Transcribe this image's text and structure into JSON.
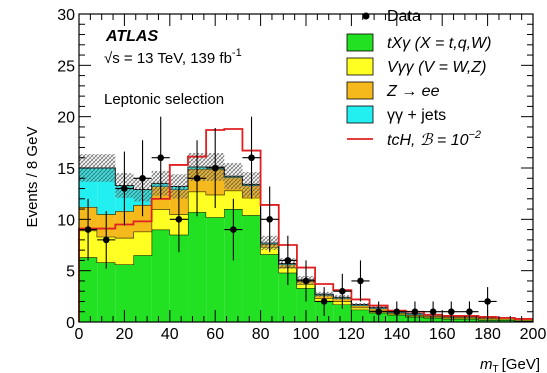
{
  "chart_data": {
    "type": "bar",
    "stacked": true,
    "x": {
      "label_main": "m",
      "label_sub": "T",
      "label_unit": "[GeV]",
      "range": [
        0,
        200
      ],
      "ticks": [
        "0",
        "20",
        "40",
        "60",
        "80",
        "100",
        "120",
        "140",
        "160",
        "180",
        "200"
      ],
      "bin_width": 8
    },
    "y": {
      "label": "Events / 8 GeV",
      "range": [
        0,
        30
      ],
      "ticks": [
        "0",
        "5",
        "10",
        "15",
        "20",
        "25",
        "30"
      ]
    },
    "bin_edges": [
      0,
      8,
      16,
      24,
      32,
      40,
      48,
      56,
      64,
      72,
      80,
      88,
      96,
      104,
      112,
      120,
      128,
      136,
      144,
      152,
      160,
      168,
      176,
      184,
      192,
      200
    ],
    "series": [
      {
        "name": "tXγ (X = t,q,W)",
        "color": "#22e022",
        "values": [
          6.3,
          5.8,
          5.6,
          6.5,
          9.0,
          8.5,
          10.7,
          10.2,
          11.0,
          10.4,
          6.6,
          4.8,
          3.3,
          2.0,
          1.7,
          1.2,
          0.9,
          0.7,
          0.5,
          0.4,
          0.3,
          0.3,
          0.2,
          0.2,
          0.1
        ]
      },
      {
        "name": "Vγγ (V = W,Z)",
        "color": "#ffff22",
        "values": [
          2.6,
          2.5,
          2.6,
          2.3,
          2.0,
          2.0,
          2.0,
          2.2,
          1.8,
          1.7,
          0.7,
          0.5,
          0.4,
          0.3,
          0.3,
          0.2,
          0.2,
          0.1,
          0.1,
          0.1,
          0.1,
          0.1,
          0.1,
          0.1,
          0.1
        ]
      },
      {
        "name": "Z → ee",
        "color": "#f5b91b",
        "values": [
          2.3,
          2.2,
          2.6,
          2.6,
          2.2,
          2.4,
          2.2,
          2.5,
          1.3,
          1.2,
          0.3,
          0.3,
          0.3,
          0.3,
          0.3,
          0.2,
          0.2,
          0.1,
          0.1,
          0.1,
          0.1,
          0.1,
          0.1,
          0.1,
          0.1
        ]
      },
      {
        "name": "γγ + jets",
        "color": "#22f0f0",
        "values": [
          3.8,
          4.5,
          2.5,
          1.5,
          0.3,
          0.3,
          0.2,
          0.2,
          0.1,
          0.1,
          0.1,
          0.1,
          0.1,
          0.1,
          0.1,
          0.1,
          0.1,
          0.1,
          0.1,
          0.1,
          0.0,
          0.0,
          0.0,
          0.0,
          0.0
        ]
      }
    ],
    "uncertainty": {
      "relative": 0.09,
      "note": "hatched band around stack total"
    },
    "signal": {
      "name": "tcH, ℬ = 10",
      "name_exp": "−2",
      "color": "#e02020",
      "values": [
        9.1,
        9.1,
        9.5,
        9.8,
        12.0,
        15.3,
        16.1,
        18.7,
        18.8,
        16.7,
        11.4,
        7.5,
        5.3,
        3.7,
        3.1,
        2.2,
        1.6,
        1.1,
        1.0,
        0.7,
        0.6,
        0.6,
        0.5,
        0.4,
        0.3
      ]
    },
    "data_points": {
      "name": "Data",
      "x": [
        4,
        12,
        20,
        28,
        36,
        44,
        52,
        60,
        68,
        76,
        84,
        92,
        100,
        108,
        116,
        124,
        132,
        140,
        148,
        156,
        164,
        172,
        180,
        188,
        196
      ],
      "y": [
        9,
        8,
        13,
        14,
        16,
        10,
        14,
        15,
        9,
        16,
        10,
        6,
        4,
        2,
        3,
        4,
        1,
        1,
        1,
        1,
        1,
        1,
        2,
        0,
        0
      ],
      "err": [
        3.0,
        2.8,
        3.6,
        3.7,
        4.0,
        3.2,
        3.7,
        3.9,
        3.0,
        4.0,
        3.2,
        2.4,
        2.0,
        1.4,
        1.7,
        2.0,
        1.0,
        1.0,
        1.0,
        1.0,
        1.0,
        1.0,
        1.4,
        0,
        0
      ]
    },
    "annotations": {
      "experiment": "ATLAS",
      "energy_prefix": "√s = 13 TeV, 139 fb",
      "energy_exp": "-1",
      "selection": "Leptonic selection"
    },
    "legend": {
      "placement": "top-right",
      "entries": [
        "Data",
        "tXγ (X = t,q,W)",
        "Vγγ (V = W,Z)",
        "Z → ee",
        "γγ + jets",
        "tcH, ℬ = 10"
      ]
    },
    "grid": false
  }
}
